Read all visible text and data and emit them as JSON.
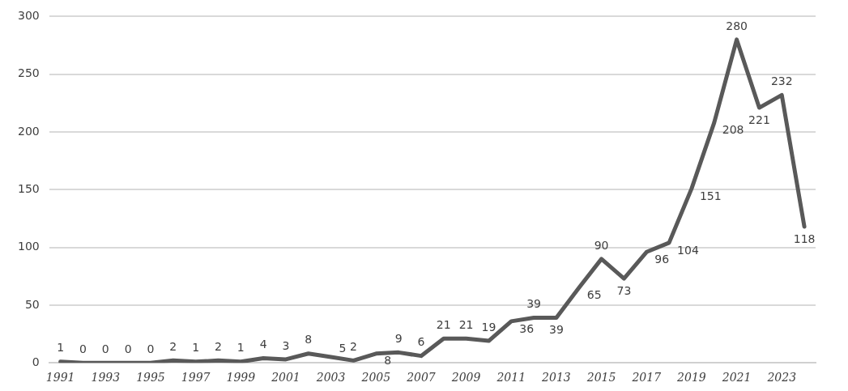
{
  "chart_data": {
    "type": "line",
    "categories": [
      "1991",
      null,
      "1993",
      null,
      "1995",
      null,
      "1997",
      null,
      "1999",
      null,
      "2001",
      null,
      "2003",
      null,
      "2005",
      null,
      "2007",
      null,
      "2009",
      null,
      "2011",
      null,
      "2013",
      null,
      "2015",
      null,
      "2017",
      null,
      "2019",
      null,
      "2021",
      null,
      "2023",
      null
    ],
    "series": [
      {
        "color": "#595959",
        "values": [
          1,
          0,
          0,
          0,
          0,
          2,
          1,
          2,
          1,
          4,
          3,
          8,
          5,
          2,
          8,
          9,
          6,
          21,
          21,
          19,
          36,
          39,
          39,
          65,
          90,
          73,
          96,
          104,
          151,
          208,
          280,
          221,
          232,
          118
        ]
      }
    ],
    "ylim": [
      0,
      300
    ],
    "yticks": [
      0,
      50,
      100,
      150,
      200,
      250,
      300
    ],
    "grid": "y",
    "legend": false,
    "marker": "none",
    "line_style": "solid",
    "data_labels": true
  }
}
